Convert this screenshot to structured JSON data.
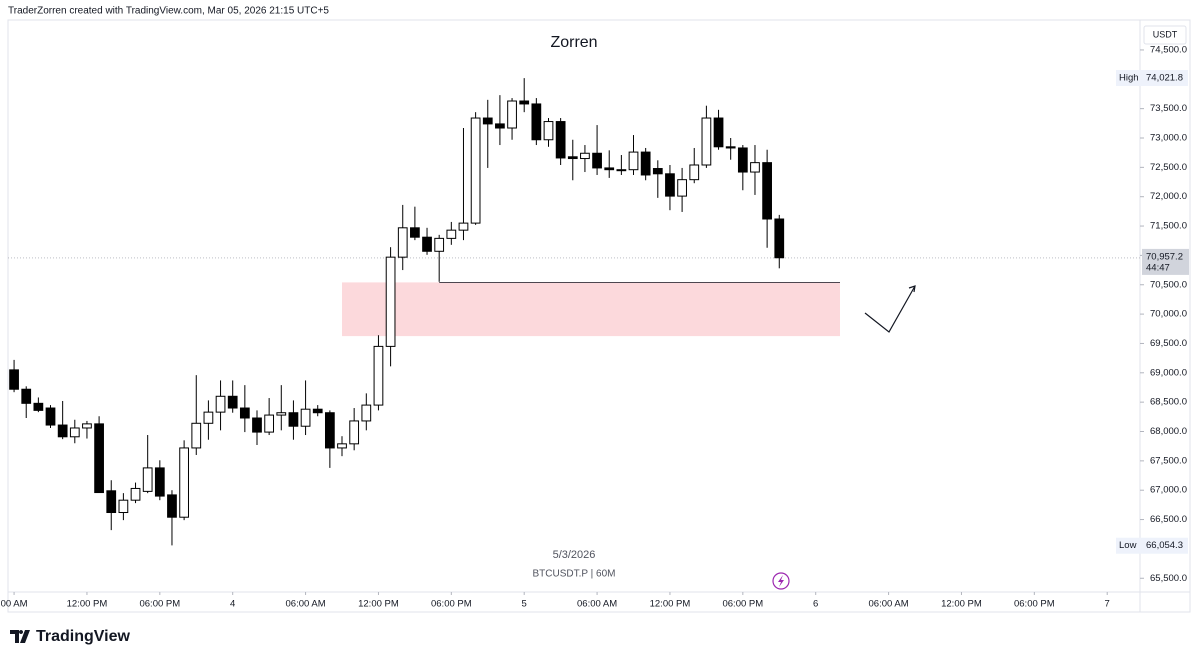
{
  "header": "TraderZorren created with TradingView.com, Mar 05, 2026 21:15 UTC+5",
  "brand": "TradingView",
  "chart_data": {
    "type": "candlestick",
    "title": "Zorren",
    "date_label": "5/3/2026",
    "symbol_label": "BTCUSDT.P | 60M",
    "currency": "USDT",
    "up_color": "#ffffff",
    "down_color": "#000000",
    "open": [
      69050,
      68720,
      68480,
      68400,
      68110,
      67910,
      68060,
      68130,
      66990,
      66620,
      66830,
      66980,
      67380,
      66920,
      66540,
      67720,
      68140,
      68330,
      68600,
      68400,
      68230,
      67990,
      68280,
      68320,
      68090,
      68380,
      68320,
      67720,
      67790,
      68180,
      68450,
      69450,
      70970,
      71470,
      71310,
      71070,
      71290,
      71430,
      71550,
      73340,
      73240,
      73170,
      73630,
      73580,
      72970,
      73280,
      72680,
      72650,
      72740,
      72490,
      72460,
      72460,
      72760,
      72480,
      72390,
      72010,
      72290,
      72540,
      73340,
      72850,
      72830,
      72420,
      72580,
      71620
    ],
    "high": [
      69220,
      68770,
      68580,
      68450,
      68520,
      68200,
      68180,
      68260,
      67170,
      66950,
      67130,
      67940,
      67510,
      67000,
      67850,
      68960,
      68530,
      68870,
      68870,
      68790,
      68360,
      68570,
      68790,
      68530,
      68870,
      68450,
      68360,
      67920,
      68400,
      68650,
      69640,
      71140,
      71860,
      71830,
      71470,
      71350,
      71570,
      73170,
      73440,
      73650,
      73730,
      73680,
      74020,
      73680,
      73340,
      73340,
      72970,
      72880,
      73220,
      72790,
      72710,
      73050,
      72830,
      72620,
      72540,
      72490,
      72830,
      73550,
      73480,
      73000,
      72880,
      72880,
      72800,
      71690
    ],
    "low": [
      68670,
      68230,
      68330,
      68060,
      67870,
      67800,
      67880,
      66960,
      66320,
      66490,
      66780,
      66950,
      66830,
      66060,
      66490,
      67600,
      67860,
      68020,
      68320,
      67990,
      67770,
      67940,
      68020,
      67860,
      67940,
      68260,
      67380,
      67580,
      67680,
      68020,
      68360,
      69110,
      70750,
      71260,
      71010,
      70550,
      71180,
      71260,
      71520,
      72490,
      72880,
      72970,
      73440,
      72880,
      72850,
      72540,
      72280,
      72420,
      72370,
      72320,
      72370,
      72370,
      72280,
      71980,
      71770,
      71740,
      72230,
      72490,
      72800,
      72630,
      72110,
      72030,
      71130,
      70780
    ],
    "close": [
      68720,
      68480,
      68360,
      68110,
      67910,
      68060,
      68130,
      66960,
      66620,
      66830,
      67030,
      67380,
      66900,
      66540,
      67720,
      68140,
      68330,
      68600,
      68400,
      68230,
      67990,
      68280,
      68320,
      68090,
      68380,
      68320,
      67720,
      67790,
      68180,
      68450,
      69450,
      70970,
      71470,
      71310,
      71070,
      71290,
      71430,
      71550,
      73340,
      73240,
      73170,
      73630,
      73580,
      72970,
      73280,
      72660,
      72650,
      72740,
      72490,
      72460,
      72460,
      72760,
      72370,
      72390,
      72010,
      72290,
      72540,
      73340,
      72850,
      72830,
      72420,
      72580,
      71620,
      70960
    ],
    "xlim": [
      -0.5,
      92.7
    ],
    "xticks": [
      {
        "value": 0,
        "label": "00 AM"
      },
      {
        "value": 6,
        "label": "12:00 PM"
      },
      {
        "value": 12,
        "label": "06:00 PM"
      },
      {
        "value": 18,
        "label": "4"
      },
      {
        "value": 24,
        "label": "06:00 AM"
      },
      {
        "value": 30,
        "label": "12:00 PM"
      },
      {
        "value": 36,
        "label": "06:00 PM"
      },
      {
        "value": 42,
        "label": "5"
      },
      {
        "value": 48,
        "label": "06:00 AM"
      },
      {
        "value": 54,
        "label": "12:00 PM"
      },
      {
        "value": 60,
        "label": "06:00 PM"
      },
      {
        "value": 66,
        "label": "6"
      },
      {
        "value": 72,
        "label": "06:00 AM"
      },
      {
        "value": 78,
        "label": "12:00 PM"
      },
      {
        "value": 84,
        "label": "06:00 PM"
      },
      {
        "value": 90,
        "label": "7"
      }
    ],
    "ylim": [
      65300,
      75010
    ],
    "yticks": [
      {
        "value": 65500,
        "label": "65,500.0"
      },
      {
        "value": 66000,
        "label": "66,000.0"
      },
      {
        "value": 66500,
        "label": "66,500.0"
      },
      {
        "value": 67000,
        "label": "67,000.0"
      },
      {
        "value": 67500,
        "label": "67,500.0"
      },
      {
        "value": 68000,
        "label": "68,000.0"
      },
      {
        "value": 68500,
        "label": "68,500.0"
      },
      {
        "value": 69000,
        "label": "69,000.0"
      },
      {
        "value": 69500,
        "label": "69,500.0"
      },
      {
        "value": 70000,
        "label": "70,000.0"
      },
      {
        "value": 70500,
        "label": "70,500.0"
      },
      {
        "value": 71000,
        "label": "71,000.0"
      },
      {
        "value": 71500,
        "label": "71,500.0"
      },
      {
        "value": 72000,
        "label": "72,000.0"
      },
      {
        "value": 72500,
        "label": "72,500.0"
      },
      {
        "value": 73000,
        "label": "73,000.0"
      },
      {
        "value": 73500,
        "label": "73,500.0"
      },
      {
        "value": 74000,
        "label": "74,000.0"
      },
      {
        "value": 74500,
        "label": "74,500.0"
      }
    ],
    "high_marker": {
      "label": "High",
      "value": 74021.8,
      "value_label": "74,021.8"
    },
    "low_marker": {
      "label": "Low",
      "value": 66054.3,
      "value_label": "66,054.3"
    },
    "current_price": {
      "value": 70957.2,
      "value_label": "70,957.2",
      "countdown": "44:47"
    },
    "zone": {
      "top": 70540,
      "bottom": 69625,
      "x_range": [
        27,
        68
      ],
      "line_start": 35,
      "color": "#fcd9dc"
    }
  }
}
